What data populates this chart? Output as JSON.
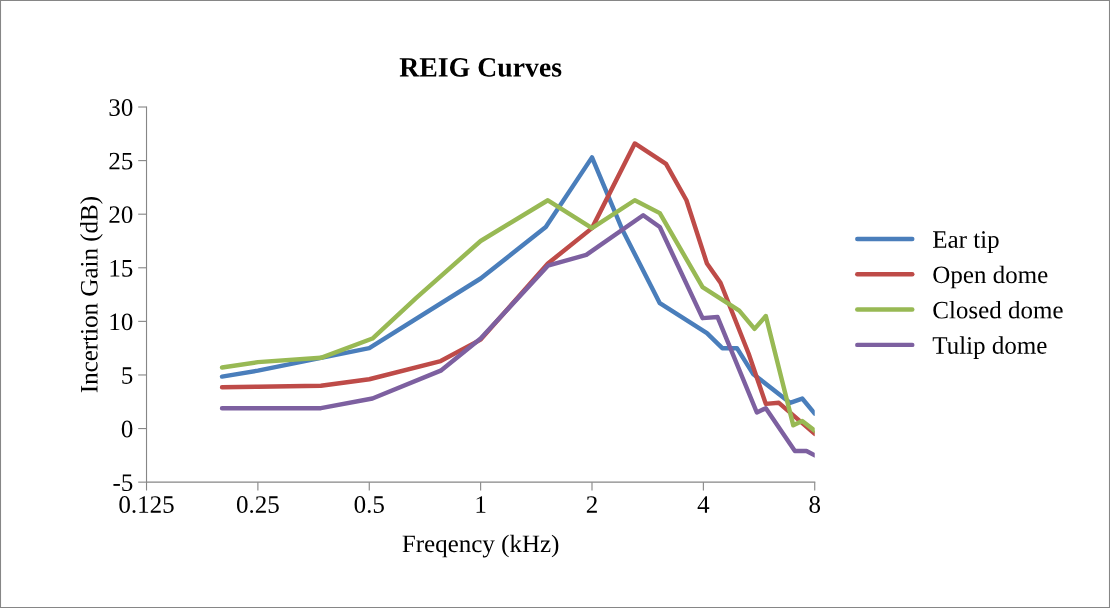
{
  "chart_data": {
    "type": "line",
    "title": "REIG Curves",
    "xlabel": "Freqency (kHz)",
    "ylabel": "Incertion Gain (dB)",
    "log": "x",
    "xlim": [
      0.125,
      8
    ],
    "xticks": [
      0.125,
      0.25,
      0.5,
      1,
      2,
      4,
      8
    ],
    "ylim": [
      -5,
      30
    ],
    "yticks": [
      -5,
      0,
      5,
      10,
      15,
      20,
      25,
      30
    ],
    "grid": false,
    "legend": "right",
    "marker": "none",
    "line_style": "solid",
    "series": [
      {
        "name": "Ear tip",
        "color": "#4a7ebb",
        "x": [
          0.2,
          0.25,
          0.5,
          1,
          1.5,
          2,
          2.42,
          3.05,
          4.09,
          4.5,
          4.93,
          5.45,
          6.86,
          7.4,
          8
        ],
        "values": [
          4.85,
          5.4,
          7.5,
          14.0,
          18.8,
          25.3,
          18.5,
          11.7,
          8.9,
          7.5,
          7.5,
          5.1,
          2.4,
          2.8,
          1.4
        ]
      },
      {
        "name": "Open dome",
        "color": "#be4b48",
        "x": [
          0.2,
          0.25,
          0.37,
          0.5,
          0.78,
          1,
          1.52,
          2,
          2.61,
          3.17,
          3.6,
          4.09,
          4.45,
          5.3,
          5.9,
          6.4,
          8
        ],
        "values": [
          3.85,
          3.9,
          4.0,
          4.6,
          6.3,
          8.3,
          15.4,
          18.7,
          26.6,
          24.7,
          21.3,
          15.4,
          13.6,
          7.0,
          2.3,
          2.4,
          -0.5
        ]
      },
      {
        "name": "Closed dome",
        "color": "#98b954",
        "x": [
          0.2,
          0.25,
          0.37,
          0.51,
          0.67,
          1,
          1.52,
          2,
          2.61,
          3.05,
          3.98,
          5.0,
          5.5,
          5.9,
          7.0,
          7.4,
          8
        ],
        "values": [
          5.7,
          6.2,
          6.6,
          8.4,
          12.2,
          17.5,
          21.3,
          18.7,
          21.3,
          20.1,
          13.2,
          11.0,
          9.3,
          10.5,
          0.3,
          0.7,
          -0.2
        ]
      },
      {
        "name": "Tulip dome",
        "color": "#7d60a0",
        "x": [
          0.2,
          0.37,
          0.51,
          0.78,
          1,
          1.52,
          1.93,
          2.75,
          3.05,
          3.98,
          4.37,
          5.58,
          5.9,
          7.07,
          7.6,
          8
        ],
        "values": [
          1.9,
          1.9,
          2.8,
          5.4,
          8.4,
          15.2,
          16.2,
          19.9,
          18.8,
          10.3,
          10.4,
          1.5,
          1.9,
          -2.1,
          -2.1,
          -2.5
        ]
      }
    ]
  }
}
